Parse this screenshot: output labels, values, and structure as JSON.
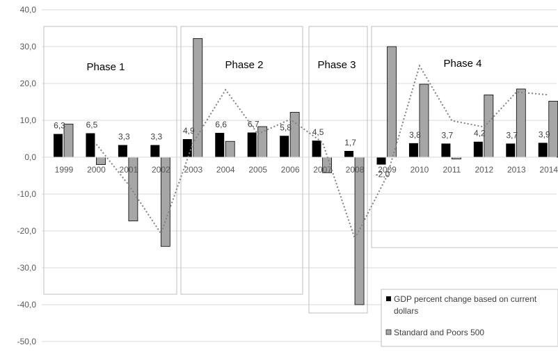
{
  "chart_data": {
    "type": "bar",
    "categories": [
      "1999",
      "2000",
      "2001",
      "2002",
      "2003",
      "2004",
      "2005",
      "2006",
      "2007",
      "2008",
      "2009",
      "2010",
      "2011",
      "2012",
      "2013",
      "2014"
    ],
    "series": [
      {
        "name": "GDP percent change based on current dollars",
        "color": "#000000",
        "values": [
          6.3,
          6.5,
          3.3,
          3.3,
          4.9,
          6.6,
          6.7,
          5.8,
          4.5,
          1.7,
          -2.0,
          3.8,
          3.7,
          4.2,
          3.7,
          3.9
        ],
        "labels": [
          "6,3",
          "6,5",
          "3,3",
          "3,3",
          "4,9",
          "6,6",
          "6,7",
          "5,8",
          "4,5",
          "1,7",
          "-2,0",
          "3,8",
          "3,7",
          "4,2",
          "3,7",
          "3,9"
        ]
      },
      {
        "name": "Standard and Poors 500",
        "color": "#a6a6a6",
        "values": [
          9.0,
          -2.0,
          -17.3,
          -24.2,
          32.2,
          4.3,
          8.3,
          12.2,
          -4.2,
          -40.0,
          30.0,
          19.8,
          -0.5,
          16.9,
          18.5,
          15.2
        ]
      }
    ],
    "trendline": {
      "style": "dotted",
      "color": "#808080",
      "values": [
        null,
        3.5,
        -7.5,
        -20.7,
        4.0,
        18.3,
        6.3,
        10.3,
        4.0,
        -22.1,
        -5.0,
        24.8,
        9.9,
        8.2,
        17.7,
        16.9
      ]
    },
    "yticks": [
      "40,0",
      "30,0",
      "20,0",
      "10,0",
      "0,0",
      "-10,0",
      "-20,0",
      "-30,0",
      "-40,0",
      "-50,0"
    ],
    "ylim": [
      -50,
      40
    ],
    "grid": true,
    "legend": "bottom-right",
    "phases": [
      {
        "label": "Phase 1",
        "from": 0,
        "to": 3
      },
      {
        "label": "Phase 2",
        "from": 4,
        "to": 7
      },
      {
        "label": "Phase 3",
        "from": 8,
        "to": 9
      },
      {
        "label": "Phase 4",
        "from": 10,
        "to": 15
      }
    ]
  }
}
